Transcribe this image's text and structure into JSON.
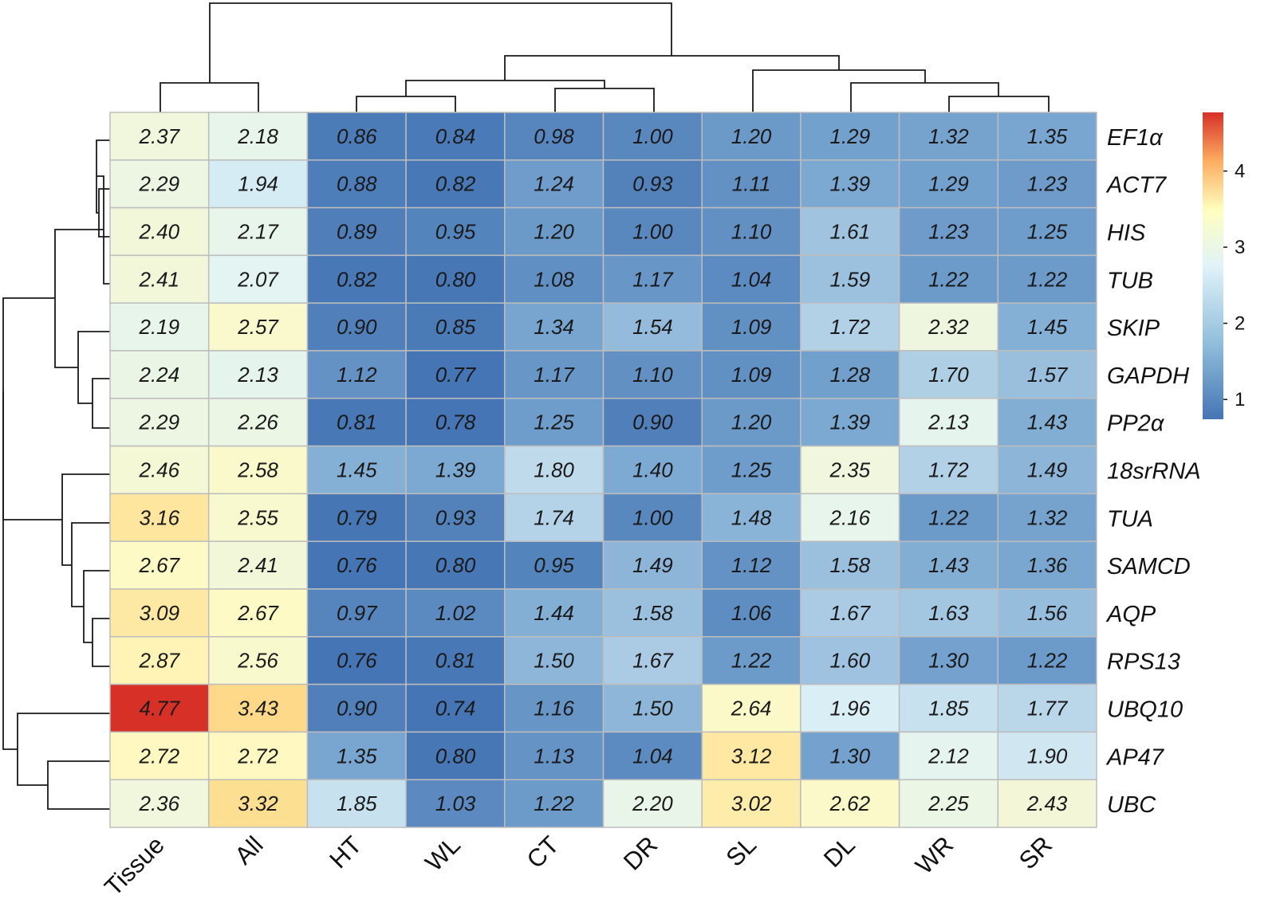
{
  "chart_data": {
    "type": "heatmap",
    "title": "",
    "rows": [
      "EF1α",
      "ACT7",
      "HIS",
      "TUB",
      "SKIP",
      "GAPDH",
      "PP2α",
      "18srRNA",
      "TUA",
      "SAMCD",
      "AQP",
      "RPS13",
      "UBQ10",
      "AP47",
      "UBC"
    ],
    "columns": [
      "Tissue",
      "All",
      "HT",
      "WL",
      "CT",
      "DR",
      "SL",
      "DL",
      "WR",
      "SR"
    ],
    "values": [
      [
        2.37,
        2.18,
        0.86,
        0.84,
        0.98,
        1.0,
        1.2,
        1.29,
        1.32,
        1.35
      ],
      [
        2.29,
        1.94,
        0.88,
        0.82,
        1.24,
        0.93,
        1.11,
        1.39,
        1.29,
        1.23
      ],
      [
        2.4,
        2.17,
        0.89,
        0.95,
        1.2,
        1.0,
        1.1,
        1.61,
        1.23,
        1.25
      ],
      [
        2.41,
        2.07,
        0.82,
        0.8,
        1.08,
        1.17,
        1.04,
        1.59,
        1.22,
        1.22
      ],
      [
        2.19,
        2.57,
        0.9,
        0.85,
        1.34,
        1.54,
        1.09,
        1.72,
        2.32,
        1.45
      ],
      [
        2.24,
        2.13,
        1.12,
        0.77,
        1.17,
        1.1,
        1.09,
        1.28,
        1.7,
        1.57
      ],
      [
        2.29,
        2.26,
        0.81,
        0.78,
        1.25,
        0.9,
        1.2,
        1.39,
        2.13,
        1.43
      ],
      [
        2.46,
        2.58,
        1.45,
        1.39,
        1.8,
        1.4,
        1.25,
        2.35,
        1.72,
        1.49
      ],
      [
        3.16,
        2.55,
        0.79,
        0.93,
        1.74,
        1.0,
        1.48,
        2.16,
        1.22,
        1.32
      ],
      [
        2.67,
        2.41,
        0.76,
        0.8,
        0.95,
        1.49,
        1.12,
        1.58,
        1.43,
        1.36
      ],
      [
        3.09,
        2.67,
        0.97,
        1.02,
        1.44,
        1.58,
        1.06,
        1.67,
        1.63,
        1.56
      ],
      [
        2.87,
        2.56,
        0.76,
        0.81,
        1.5,
        1.67,
        1.22,
        1.6,
        1.3,
        1.22
      ],
      [
        4.77,
        3.43,
        0.9,
        0.74,
        1.16,
        1.5,
        2.64,
        1.96,
        1.85,
        1.77
      ],
      [
        2.72,
        2.72,
        1.35,
        0.8,
        1.13,
        1.04,
        3.12,
        1.3,
        2.12,
        1.9
      ],
      [
        2.36,
        3.32,
        1.85,
        1.03,
        1.22,
        2.2,
        3.02,
        2.62,
        2.25,
        2.43
      ]
    ],
    "value_format": "2 decimals",
    "color_scale": {
      "range": [
        0.74,
        4.77
      ],
      "ticks": [
        1,
        2,
        3,
        4
      ],
      "stops": [
        "#4575b4",
        "#e0f3f8",
        "#ffffbf",
        "#fdae61",
        "#d73027"
      ]
    },
    "cell_border_color": "#bdbdbd",
    "dendrograms": {
      "rows": true,
      "columns": true
    }
  }
}
